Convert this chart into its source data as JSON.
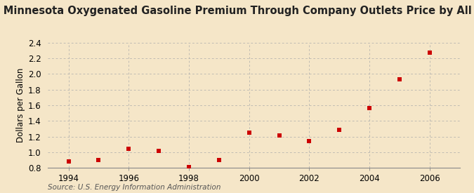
{
  "title": "Annual Minnesota Oxygenated Gasoline Premium Through Company Outlets Price by All Sellers",
  "ylabel": "Dollars per Gallon",
  "source": "Source: U.S. Energy Information Administration",
  "years": [
    1994,
    1995,
    1996,
    1997,
    1998,
    1999,
    2000,
    2001,
    2002,
    2003,
    2004,
    2005,
    2006
  ],
  "values": [
    0.88,
    0.9,
    1.04,
    1.02,
    0.81,
    0.9,
    1.25,
    1.21,
    1.14,
    1.29,
    1.56,
    1.93,
    2.27
  ],
  "marker_color": "#cc0000",
  "marker_size": 4,
  "background_color": "#f5e6c8",
  "grid_color": "#aaaaaa",
  "title_fontsize": 10.5,
  "label_fontsize": 8.5,
  "tick_fontsize": 8.5,
  "source_fontsize": 7.5,
  "xlim": [
    1993.3,
    2007.0
  ],
  "ylim": [
    0.8,
    2.4
  ],
  "yticks": [
    0.8,
    1.0,
    1.2,
    1.4,
    1.6,
    1.8,
    2.0,
    2.2,
    2.4
  ],
  "xticks": [
    1994,
    1996,
    1998,
    2000,
    2002,
    2004,
    2006
  ]
}
